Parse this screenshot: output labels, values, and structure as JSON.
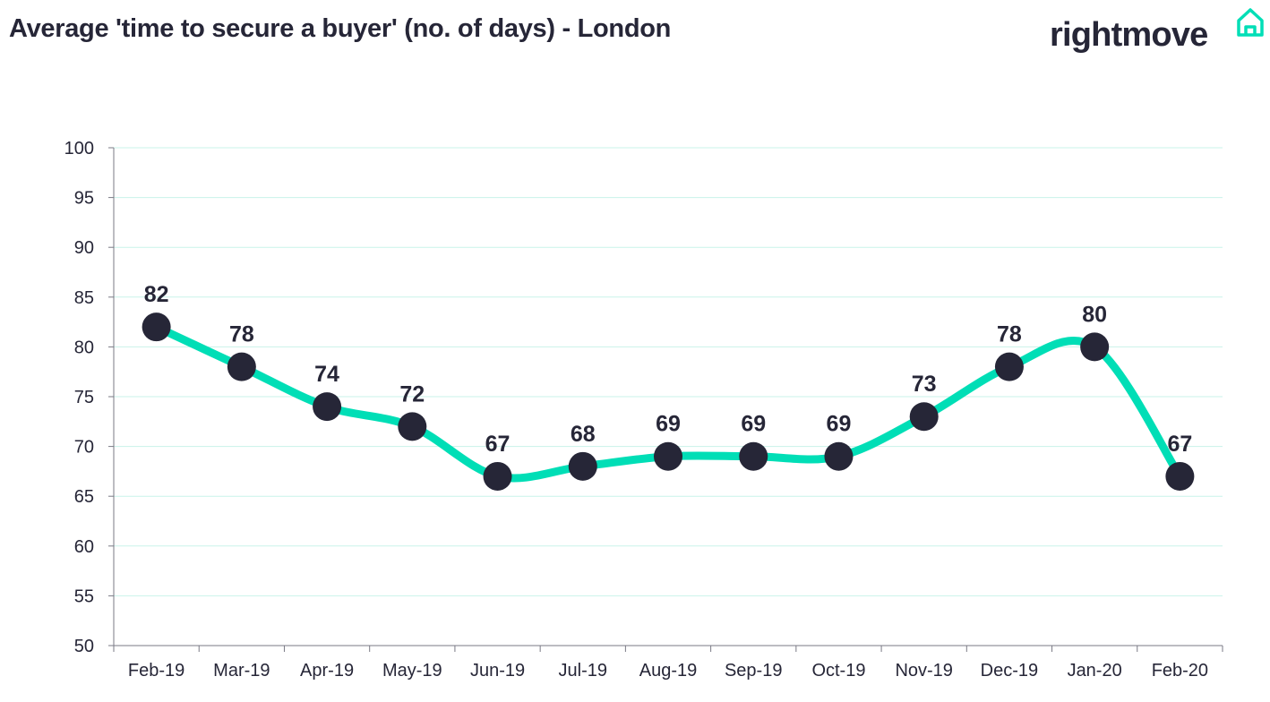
{
  "brand": {
    "name": "rightmove",
    "logo_icon": "house-outline-icon",
    "accent_color": "#00deb6",
    "text_color": "#262637"
  },
  "chart_data": {
    "type": "line",
    "title": "Average 'time to secure a buyer' (no. of days) - London",
    "xlabel": "",
    "ylabel": "",
    "categories": [
      "Feb-19",
      "Mar-19",
      "Apr-19",
      "May-19",
      "Jun-19",
      "Jul-19",
      "Aug-19",
      "Sep-19",
      "Oct-19",
      "Nov-19",
      "Dec-19",
      "Jan-20",
      "Feb-20"
    ],
    "series": [
      {
        "values": [
          82,
          78,
          74,
          72,
          67,
          68,
          69,
          69,
          69,
          73,
          78,
          80,
          67
        ],
        "color": "#00deb6",
        "marker_color": "#262637"
      }
    ],
    "ylim": [
      50,
      100
    ],
    "yticks": [
      50,
      55,
      60,
      65,
      70,
      75,
      80,
      85,
      90,
      95,
      100
    ],
    "grid": true,
    "grid_color": "#c9f3ea",
    "smooth": true,
    "data_labels": true,
    "legend": "none"
  }
}
